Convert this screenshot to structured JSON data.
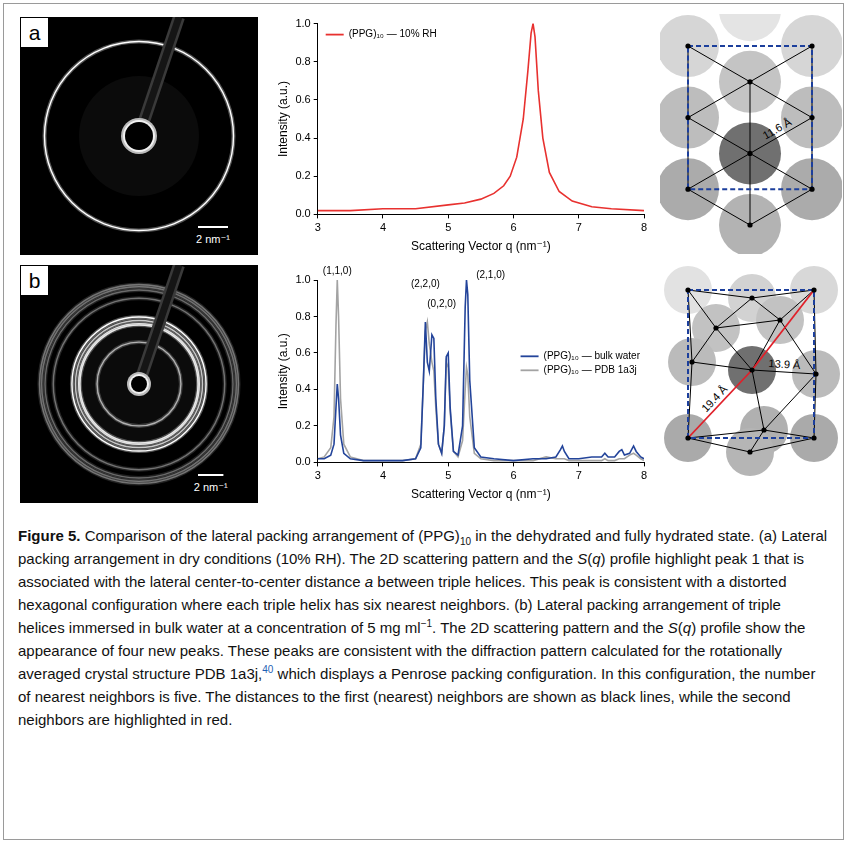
{
  "chart_data": [
    {
      "type": "line",
      "x": [
        3,
        3.5,
        4,
        4.5,
        5,
        5.25,
        5.5,
        5.7,
        5.85,
        5.95,
        6.05,
        6.15,
        6.22,
        6.27,
        6.3,
        6.33,
        6.38,
        6.45,
        6.55,
        6.7,
        6.9,
        7.2,
        7.5,
        8
      ],
      "series": [
        {
          "name": "(PPG)₁₀ — 10% RH",
          "color": "#e8312f",
          "values": [
            0.02,
            0.02,
            0.03,
            0.03,
            0.05,
            0.06,
            0.08,
            0.11,
            0.15,
            0.2,
            0.3,
            0.5,
            0.75,
            0.95,
            1.0,
            0.93,
            0.65,
            0.4,
            0.22,
            0.12,
            0.07,
            0.04,
            0.03,
            0.02
          ]
        }
      ],
      "xlabel": "Scattering Vector q (nm⁻¹)",
      "ylabel": "Intensity (a.u.)",
      "xlim": [
        3,
        8
      ],
      "xticks": [
        3,
        4,
        5,
        6,
        7,
        8
      ],
      "ylim": [
        0,
        1
      ],
      "yticks": [
        {
          "value": 0,
          "label": "0.0"
        },
        0.2,
        0.4,
        0.6,
        0.8,
        {
          "value": 1,
          "label": "1.0"
        }
      ],
      "grid": false,
      "legend": "upper left"
    },
    {
      "type": "line",
      "x": [
        3.0,
        3.1,
        3.2,
        3.25,
        3.28,
        3.3,
        3.32,
        3.35,
        3.4,
        3.5,
        3.7,
        4.0,
        4.3,
        4.5,
        4.58,
        4.62,
        4.65,
        4.68,
        4.71,
        4.75,
        4.78,
        4.81,
        4.85,
        4.9,
        4.94,
        4.97,
        5.0,
        5.03,
        5.08,
        5.15,
        5.22,
        5.26,
        5.28,
        5.3,
        5.33,
        5.4,
        5.5,
        5.7,
        6.0,
        6.3,
        6.5,
        6.65,
        6.72,
        6.75,
        6.78,
        6.85,
        7.0,
        7.2,
        7.35,
        7.4,
        7.45,
        7.55,
        7.62,
        7.66,
        7.7,
        7.78,
        7.84,
        7.88,
        7.95,
        8.0
      ],
      "series": [
        {
          "name": "(PPG)₁₀ — bulk water",
          "color": "#23449a",
          "values": [
            0.02,
            0.02,
            0.04,
            0.1,
            0.3,
            0.43,
            0.35,
            0.15,
            0.05,
            0.02,
            0.01,
            0.01,
            0.01,
            0.02,
            0.08,
            0.45,
            0.77,
            0.55,
            0.5,
            0.7,
            0.68,
            0.35,
            0.1,
            0.05,
            0.2,
            0.58,
            0.6,
            0.3,
            0.06,
            0.04,
            0.2,
            0.85,
            1.0,
            0.92,
            0.45,
            0.08,
            0.03,
            0.02,
            0.01,
            0.02,
            0.02,
            0.03,
            0.07,
            0.09,
            0.06,
            0.02,
            0.02,
            0.03,
            0.03,
            0.05,
            0.03,
            0.03,
            0.06,
            0.07,
            0.04,
            0.05,
            0.09,
            0.06,
            0.03,
            0.02
          ]
        },
        {
          "name": "(PPG)₁₀ — PDB 1a3j",
          "color": "#a3a3a3",
          "values": [
            0.02,
            0.03,
            0.08,
            0.25,
            0.75,
            1.0,
            0.8,
            0.35,
            0.1,
            0.03,
            0.01,
            0.01,
            0.01,
            0.02,
            0.1,
            0.45,
            0.72,
            0.77,
            0.65,
            0.55,
            0.5,
            0.3,
            0.1,
            0.05,
            0.2,
            0.55,
            0.52,
            0.28,
            0.06,
            0.03,
            0.12,
            0.4,
            0.52,
            0.48,
            0.25,
            0.05,
            0.02,
            0.01,
            0.01,
            0.01,
            0.03,
            0.02,
            0.02,
            0.02,
            0.02,
            0.01,
            0.01,
            0.01,
            0.01,
            0.02,
            0.01,
            0.01,
            0.02,
            0.02,
            0.02,
            0.04,
            0.05,
            0.04,
            0.02,
            0.01
          ]
        }
      ],
      "annotations": [
        {
          "text": "(1,1,0)",
          "x": 3.3,
          "y": 1.02
        },
        {
          "text": "(2,2,0)",
          "x": 4.65,
          "y": 0.95
        },
        {
          "text": "(0,2,0)",
          "x": 4.9,
          "y": 0.84
        },
        {
          "text": "(2,1,0)",
          "x": 5.65,
          "y": 1.0
        }
      ],
      "xlabel": "Scattering Vector q (nm⁻¹)",
      "ylabel": "Intensity (a.u.)",
      "xlim": [
        3,
        8
      ],
      "xticks": [
        3,
        4,
        5,
        6,
        7,
        8
      ],
      "ylim": [
        0,
        1
      ],
      "yticks": [
        {
          "value": 0,
          "label": "0.0"
        },
        0.2,
        0.4,
        0.6,
        0.8,
        {
          "value": 1,
          "label": "1.0"
        }
      ],
      "grid": false,
      "legend": "right"
    }
  ],
  "panels": [
    {
      "letter": "a",
      "scale_bar": "2 nm⁻¹",
      "distance_labels": [
        "11.6 Å"
      ]
    },
    {
      "letter": "b",
      "scale_bar": "2 nm⁻¹",
      "distance_labels": [
        "13.9 Å",
        "19.4 Å"
      ]
    }
  ],
  "caption": [
    {
      "text": "Figure 5.",
      "format": "bold"
    },
    {
      "text": " Comparison of the lateral packing arrangement of (PPG)"
    },
    {
      "text": "10",
      "format": "sub"
    },
    {
      "text": " in the dehydrated and fully hydrated state. (a) Lateral packing arrangement in dry conditions (10% RH). The 2D scattering pattern and the "
    },
    {
      "text": "S",
      "format": "italic"
    },
    {
      "text": "("
    },
    {
      "text": "q",
      "format": "italic"
    },
    {
      "text": ") profile highlight peak 1 that is associated with the lateral center-to-center distance "
    },
    {
      "text": "a",
      "format": "italic"
    },
    {
      "text": " between triple helices. This peak is consistent with a distorted hexagonal configuration where each triple helix has six nearest neighbors. (b) Lateral packing arrangement of triple helices immersed in bulk water at a concentration of 5 mg ml"
    },
    {
      "text": "−1",
      "format": "sup"
    },
    {
      "text": ". The 2D scattering pattern and the "
    },
    {
      "text": "S",
      "format": "italic"
    },
    {
      "text": "("
    },
    {
      "text": "q",
      "format": "italic"
    },
    {
      "text": ") profile show the appearance of four new peaks. These peaks are consistent with the diffraction pattern calculated for the rotationally averaged crystal structure PDB 1a3j,"
    },
    {
      "text": "40",
      "format": "reference"
    },
    {
      "text": " which displays a Penrose packing configuration. In this configuration, the number of nearest neighbors is five. The distances to the first (nearest) neighbors are shown as black lines, while the second neighbors are highlighted in red."
    }
  ]
}
